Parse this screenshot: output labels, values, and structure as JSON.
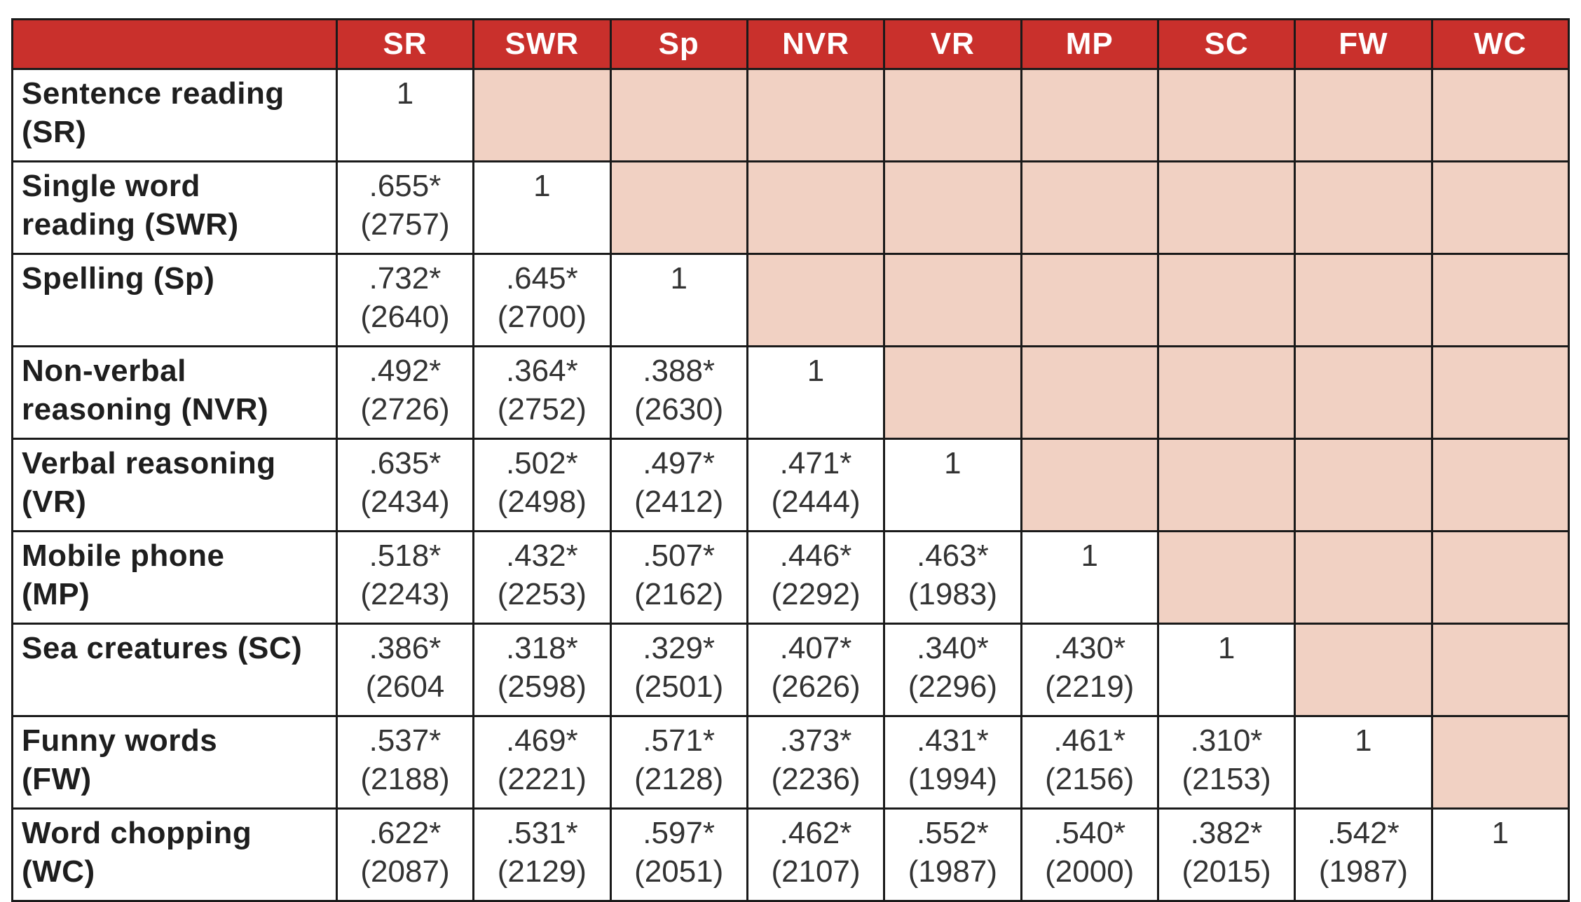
{
  "table": {
    "headers": [
      "SR",
      "SWR",
      "Sp",
      "NVR",
      "VR",
      "MP",
      "SC",
      "FW",
      "WC"
    ],
    "rows": [
      {
        "label_lines": [
          "Sentence reading",
          "(SR)"
        ],
        "cells": [
          [
            "1",
            ""
          ],
          [
            "",
            ""
          ],
          [
            "",
            ""
          ],
          [
            "",
            ""
          ],
          [
            "",
            ""
          ],
          [
            "",
            ""
          ],
          [
            "",
            ""
          ],
          [
            "",
            ""
          ],
          [
            "",
            ""
          ]
        ]
      },
      {
        "label_lines": [
          "Single word",
          "reading (SWR)"
        ],
        "cells": [
          [
            ".655*",
            "(2757)"
          ],
          [
            "1",
            ""
          ],
          [
            "",
            ""
          ],
          [
            "",
            ""
          ],
          [
            "",
            ""
          ],
          [
            "",
            ""
          ],
          [
            "",
            ""
          ],
          [
            "",
            ""
          ],
          [
            "",
            ""
          ]
        ]
      },
      {
        "label_lines": [
          "Spelling (Sp)",
          ""
        ],
        "cells": [
          [
            ".732*",
            "(2640)"
          ],
          [
            ".645*",
            "(2700)"
          ],
          [
            "1",
            ""
          ],
          [
            "",
            ""
          ],
          [
            "",
            ""
          ],
          [
            "",
            ""
          ],
          [
            "",
            ""
          ],
          [
            "",
            ""
          ],
          [
            "",
            ""
          ]
        ]
      },
      {
        "label_lines": [
          "Non-verbal",
          "reasoning (NVR)"
        ],
        "cells": [
          [
            ".492*",
            "(2726)"
          ],
          [
            ".364*",
            "(2752)"
          ],
          [
            ".388*",
            "(2630)"
          ],
          [
            "1",
            ""
          ],
          [
            "",
            ""
          ],
          [
            "",
            ""
          ],
          [
            "",
            ""
          ],
          [
            "",
            ""
          ],
          [
            "",
            ""
          ]
        ]
      },
      {
        "label_lines": [
          "Verbal reasoning",
          "(VR)"
        ],
        "cells": [
          [
            ".635*",
            "(2434)"
          ],
          [
            ".502*",
            "(2498)"
          ],
          [
            ".497*",
            "(2412)"
          ],
          [
            ".471*",
            "(2444)"
          ],
          [
            "1",
            ""
          ],
          [
            "",
            ""
          ],
          [
            "",
            ""
          ],
          [
            "",
            ""
          ],
          [
            "",
            ""
          ]
        ]
      },
      {
        "label_lines": [
          "Mobile phone",
          "(MP)"
        ],
        "cells": [
          [
            ".518*",
            "(2243)"
          ],
          [
            ".432*",
            "(2253)"
          ],
          [
            ".507*",
            "(2162)"
          ],
          [
            ".446*",
            "(2292)"
          ],
          [
            ".463*",
            "(1983)"
          ],
          [
            "1",
            ""
          ],
          [
            "",
            ""
          ],
          [
            "",
            ""
          ],
          [
            "",
            ""
          ]
        ]
      },
      {
        "label_lines": [
          "Sea creatures (SC)",
          ""
        ],
        "cells": [
          [
            ".386*",
            "(2604"
          ],
          [
            ".318*",
            "(2598)"
          ],
          [
            ".329*",
            "(2501)"
          ],
          [
            ".407*",
            "(2626)"
          ],
          [
            ".340*",
            "(2296)"
          ],
          [
            ".430*",
            "(2219)"
          ],
          [
            "1",
            ""
          ],
          [
            "",
            ""
          ],
          [
            "",
            ""
          ]
        ]
      },
      {
        "label_lines": [
          "Funny words",
          "(FW)"
        ],
        "cells": [
          [
            ".537*",
            "(2188)"
          ],
          [
            ".469*",
            "(2221)"
          ],
          [
            ".571*",
            "(2128)"
          ],
          [
            ".373*",
            "(2236)"
          ],
          [
            ".431*",
            "(1994)"
          ],
          [
            ".461*",
            "(2156)"
          ],
          [
            ".310*",
            "(2153)"
          ],
          [
            "1",
            ""
          ],
          [
            "",
            ""
          ]
        ]
      },
      {
        "label_lines": [
          "Word chopping",
          "(WC)"
        ],
        "cells": [
          [
            ".622*",
            "(2087)"
          ],
          [
            ".531*",
            "(2129)"
          ],
          [
            ".597*",
            "(2051)"
          ],
          [
            ".462*",
            "(2107)"
          ],
          [
            ".552*",
            "(1987)"
          ],
          [
            ".540*",
            "(2000)"
          ],
          [
            ".382*",
            "(2015)"
          ],
          [
            ".542*",
            "(1987)"
          ],
          [
            "1",
            ""
          ]
        ]
      }
    ]
  },
  "colors": {
    "header_bg": "#c9302c",
    "header_text": "#ffffff",
    "empty_cell_bg": "#f1d1c3",
    "border": "#1a1a1a"
  }
}
